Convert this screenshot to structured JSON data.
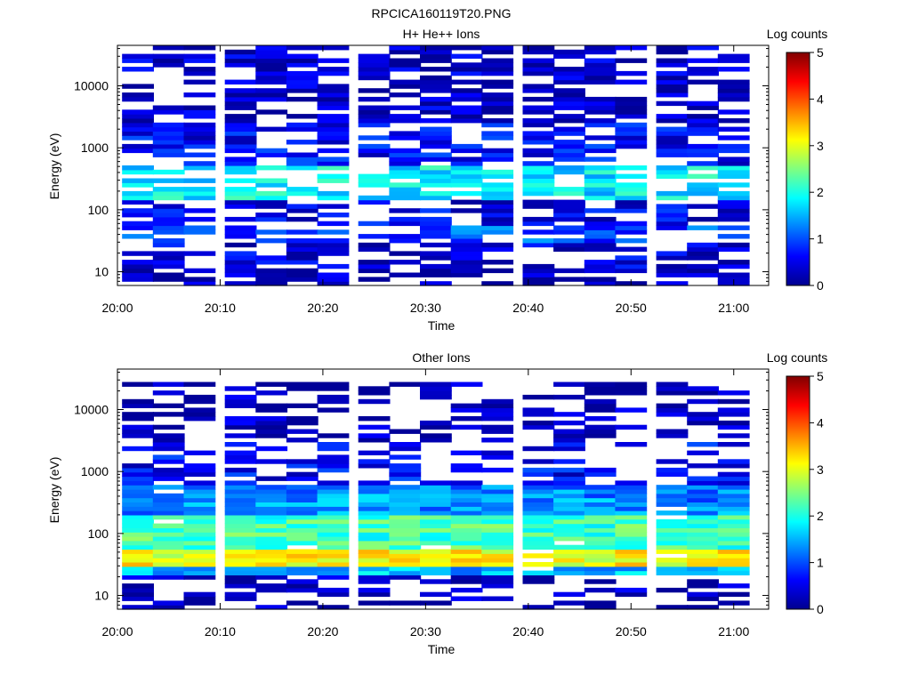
{
  "figure_title": "RPCICA160119T20.PNG",
  "colorbar_ticks": [
    "0",
    "1",
    "2",
    "3",
    "4",
    "5"
  ],
  "chart_data": [
    {
      "type": "heatmap",
      "title": "H+ He++ Ions",
      "xlabel": "Time",
      "ylabel": "Energy (eV)",
      "colorbar_label": "Log counts",
      "x_ticks": [
        "20:00",
        "20:10",
        "20:20",
        "20:30",
        "20:40",
        "20:50",
        "21:00"
      ],
      "y_ticks": [
        "10",
        "100",
        "1000",
        "10000"
      ],
      "y_scale": "log",
      "ylim": [
        6,
        45000
      ],
      "clim": [
        0,
        5
      ],
      "time_columns": [
        "20:02",
        "20:05",
        "20:08",
        "20:12",
        "20:15",
        "20:18",
        "20:21",
        "20:25",
        "20:28",
        "20:31",
        "20:34",
        "20:37",
        "20:41",
        "20:44",
        "20:47",
        "20:50",
        "20:54",
        "20:57",
        "21:00"
      ],
      "intensity_profile": [
        {
          "energy_range": [
            6,
            12
          ],
          "log_counts": 0.2
        },
        {
          "energy_range": [
            12,
            30
          ],
          "log_counts": 0.4
        },
        {
          "energy_range": [
            30,
            60
          ],
          "log_counts": 1.0
        },
        {
          "energy_range": [
            60,
            150
          ],
          "log_counts": 0.5
        },
        {
          "energy_range": [
            150,
            500
          ],
          "log_counts": 1.8
        },
        {
          "energy_range": [
            500,
            2500
          ],
          "log_counts": 0.6
        },
        {
          "energy_range": [
            2500,
            45000
          ],
          "log_counts": 0.3
        }
      ]
    },
    {
      "type": "heatmap",
      "title": "Other Ions",
      "xlabel": "Time",
      "ylabel": "Energy (eV)",
      "colorbar_label": "Log counts",
      "x_ticks": [
        "20:00",
        "20:10",
        "20:20",
        "20:30",
        "20:40",
        "20:50",
        "21:00"
      ],
      "y_ticks": [
        "10",
        "100",
        "1000",
        "10000"
      ],
      "y_scale": "log",
      "ylim": [
        6,
        45000
      ],
      "clim": [
        0,
        5
      ],
      "time_columns": [
        "20:02",
        "20:05",
        "20:08",
        "20:12",
        "20:15",
        "20:18",
        "20:21",
        "20:25",
        "20:28",
        "20:31",
        "20:34",
        "20:37",
        "20:41",
        "20:44",
        "20:47",
        "20:50",
        "20:54",
        "20:57",
        "21:00"
      ],
      "intensity_profile": [
        {
          "energy_range": [
            6,
            22
          ],
          "log_counts": 0.2
        },
        {
          "energy_range": [
            22,
            30
          ],
          "log_counts": 1.5
        },
        {
          "energy_range": [
            30,
            60
          ],
          "log_counts": 3.1
        },
        {
          "energy_range": [
            60,
            200
          ],
          "log_counts": 2.2
        },
        {
          "energy_range": [
            200,
            600
          ],
          "log_counts": 1.3
        },
        {
          "energy_range": [
            600,
            3000
          ],
          "log_counts": 0.6
        },
        {
          "energy_range": [
            3000,
            30000
          ],
          "log_counts": 0.2
        }
      ]
    }
  ]
}
